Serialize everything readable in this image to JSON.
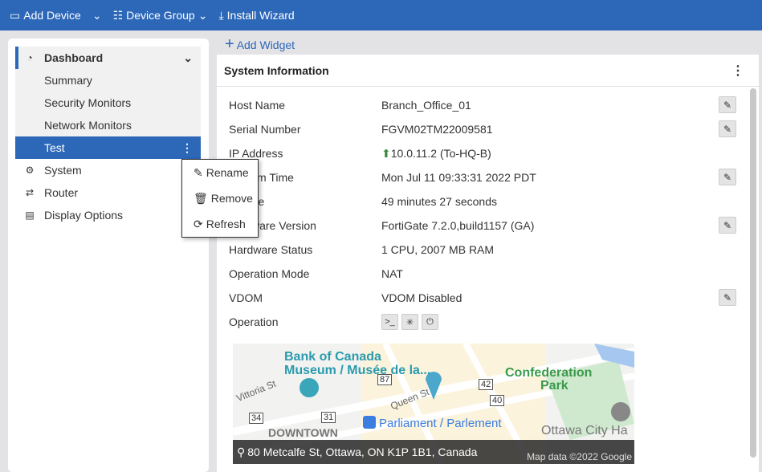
{
  "topbar": {
    "add_device": "Add Device",
    "device_group": "Device Group",
    "install_wizard": "Install Wizard"
  },
  "sidebar": {
    "dashboard": "Dashboard",
    "items": [
      "Summary",
      "Security Monitors",
      "Network Monitors",
      "Test"
    ],
    "system": "System",
    "router": "Router",
    "display_options": "Display Options"
  },
  "context_menu": [
    "Rename",
    "Remove",
    "Refresh"
  ],
  "add_widget": "Add Widget",
  "widget": {
    "title": "System Information",
    "rows": [
      {
        "label": "Host Name",
        "value": "Branch_Office_01",
        "edit": true
      },
      {
        "label": "Serial Number",
        "value": "FGVM02TM22009581",
        "edit": true
      },
      {
        "label": "IP Address",
        "value": "10.0.11.2 (To-HQ-B)",
        "edit": false
      },
      {
        "label": "System Time",
        "value": "Mon Jul 11 09:33:31 2022 PDT",
        "edit": true
      },
      {
        "label": "Uptime",
        "value": "49 minutes 27 seconds",
        "edit": false
      },
      {
        "label": "Firmware Version",
        "value": "FortiGate 7.2.0,build1157 (GA)",
        "edit": true
      },
      {
        "label": "Hardware Status",
        "value": "1 CPU, 2007 MB RAM",
        "edit": false
      },
      {
        "label": "Operation Mode",
        "value": "NAT",
        "edit": false
      },
      {
        "label": "VDOM",
        "value": "VDOM Disabled",
        "edit": true
      },
      {
        "label": "Operation",
        "value": "",
        "edit": false
      }
    ]
  },
  "map": {
    "address": "80 Metcalfe St, Ottawa, ON K1P 1B1, Canada",
    "labels": [
      "Bank of Canada",
      "Museum / Musée de la...",
      "Confederation",
      "Park",
      "Parliament / Parlement",
      "Queen St",
      "Vittoria St",
      "Ottawa City Ha",
      "DOWNTOWN",
      "Map data ©2022 Google",
      "87",
      "42",
      "40",
      "34",
      "31"
    ]
  },
  "colors": {
    "brand": "#2c67b8"
  }
}
